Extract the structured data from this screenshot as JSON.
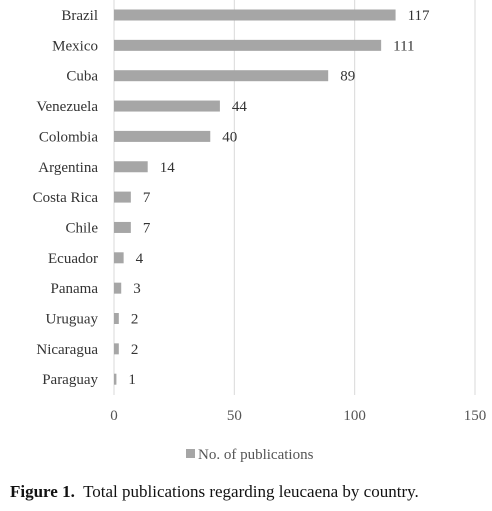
{
  "chart_data": {
    "type": "bar",
    "orientation": "horizontal",
    "categories": [
      "Brazil",
      "Mexico",
      "Cuba",
      "Venezuela",
      "Colombia",
      "Argentina",
      "Costa Rica",
      "Chile",
      "Ecuador",
      "Panama",
      "Uruguay",
      "Nicaragua",
      "Paraguay"
    ],
    "series": [
      {
        "name": "No. of publications",
        "values": [
          117,
          111,
          89,
          44,
          40,
          14,
          7,
          7,
          4,
          3,
          2,
          2,
          1
        ],
        "color": "#a6a6a6"
      }
    ],
    "xlim": [
      0,
      150
    ],
    "xticks": [
      0,
      50,
      100,
      150
    ],
    "grid": true,
    "data_labels": true,
    "legend": "bottom",
    "gridline_color": "#d9d9d9"
  },
  "caption": {
    "label": "Figure 1.",
    "text": "Total publications regarding leucaena by country."
  }
}
